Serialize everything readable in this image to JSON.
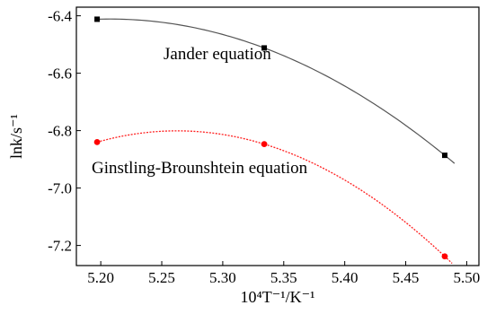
{
  "chart_data": {
    "type": "line",
    "title": "",
    "xlabel": "10⁴T⁻¹/K⁻¹",
    "ylabel": "lnk/s⁻¹",
    "xlim": [
      5.18,
      5.51
    ],
    "ylim": [
      -7.27,
      -6.37
    ],
    "xticks": [
      5.2,
      5.25,
      5.3,
      5.35,
      5.4,
      5.45,
      5.5
    ],
    "xtick_labels": [
      "5.20",
      "5.25",
      "5.30",
      "5.35",
      "5.40",
      "5.45",
      "5.50"
    ],
    "yticks": [
      -6.4,
      -6.6,
      -6.8,
      -7.0,
      -7.2
    ],
    "ytick_labels": [
      "-6.4",
      "-6.6",
      "-6.8",
      "-7.0",
      "-7.2"
    ],
    "grid": false,
    "legend": "none",
    "series": [
      {
        "name": "Jander equation",
        "color": "#000000",
        "line_color": "#555555",
        "line_style": "solid",
        "marker": "square",
        "x": [
          5.197,
          5.334,
          5.482
        ],
        "y": [
          -6.412,
          -6.512,
          -6.886
        ],
        "fit_x_end": 5.49,
        "fit_y_end": -6.908
      },
      {
        "name": "Ginstling-Brounshtein equation",
        "color": "#ff0000",
        "line_color": "#ff2020",
        "line_style": "dotted",
        "marker": "circle",
        "x": [
          5.197,
          5.334,
          5.482
        ],
        "y": [
          -6.84,
          -6.847,
          -7.238
        ],
        "fit_x_end": 5.488,
        "fit_y_end": -7.262
      }
    ],
    "annotations": [
      {
        "text": "Jander equation",
        "series": 0
      },
      {
        "text": "Ginstling-Brounshtein equation",
        "series": 1
      }
    ]
  }
}
